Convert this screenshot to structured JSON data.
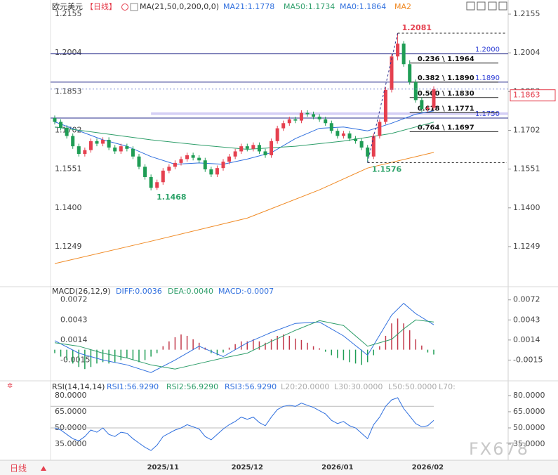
{
  "chart_data": [
    {
      "type": "candlestick",
      "title": "欧元美元",
      "period": "【日线】",
      "indicator": "MA(21,50,0,200,0,0)",
      "legend": [
        {
          "text": "MA21:1.1778",
          "color": "#2f6fde"
        },
        {
          "text": "MA50:1.1734",
          "color": "#2e9e6a"
        },
        {
          "text": "MA0:1.1864",
          "color": "#2f6fde"
        },
        {
          "text": "MA2",
          "color": "#f08a24"
        }
      ],
      "categories": [
        null,
        null,
        null,
        null,
        null,
        null,
        null,
        null,
        null,
        null,
        null,
        null,
        null,
        null,
        null,
        null,
        null,
        null,
        "2025/11",
        null,
        null,
        null,
        null,
        null,
        null,
        null,
        null,
        null,
        null,
        null,
        null,
        null,
        "2025/12",
        null,
        null,
        null,
        null,
        null,
        null,
        null,
        null,
        null,
        null,
        null,
        null,
        null,
        null,
        "2026/01",
        null,
        null,
        null,
        null,
        null,
        null,
        null,
        null,
        null,
        null,
        null,
        null,
        null,
        null,
        "2026/02",
        null
      ],
      "open": [
        1.175,
        1.1735,
        1.1712,
        1.168,
        1.164,
        1.161,
        1.1625,
        1.166,
        1.165,
        1.1665,
        1.1635,
        1.162,
        1.164,
        1.163,
        1.16,
        1.156,
        1.152,
        1.1478,
        1.15,
        1.1545,
        1.156,
        1.1575,
        1.159,
        1.1605,
        1.1595,
        1.1585,
        1.155,
        1.153,
        1.1555,
        1.158,
        1.16,
        1.162,
        1.164,
        1.163,
        1.1645,
        1.162,
        1.1605,
        1.166,
        1.171,
        1.173,
        1.1745,
        1.174,
        1.177,
        1.1765,
        1.1755,
        1.1745,
        1.173,
        1.17,
        1.168,
        1.169,
        1.167,
        1.166,
        1.1635,
        1.16,
        1.168,
        1.1735,
        1.186,
        1.199,
        1.204,
        1.196,
        1.189,
        1.182,
        1.1785,
        1.179
      ],
      "high": [
        1.176,
        1.1745,
        1.1722,
        1.169,
        1.165,
        1.1635,
        1.167,
        1.167,
        1.1675,
        1.1675,
        1.1645,
        1.165,
        1.165,
        1.164,
        1.161,
        1.157,
        1.153,
        1.151,
        1.1555,
        1.157,
        1.1585,
        1.16,
        1.1615,
        1.1615,
        1.1605,
        1.1595,
        1.156,
        1.1565,
        1.159,
        1.161,
        1.163,
        1.165,
        1.165,
        1.1655,
        1.1655,
        1.163,
        1.167,
        1.172,
        1.174,
        1.1755,
        1.1755,
        1.178,
        1.178,
        1.1775,
        1.1765,
        1.1755,
        1.174,
        1.171,
        1.17,
        1.17,
        1.168,
        1.167,
        1.1645,
        1.169,
        1.1745,
        1.187,
        1.2,
        1.2081,
        1.205,
        1.1975,
        1.19,
        1.183,
        1.18,
        1.1873
      ],
      "low": [
        1.1725,
        1.1702,
        1.167,
        1.163,
        1.16,
        1.16,
        1.1615,
        1.164,
        1.164,
        1.1625,
        1.161,
        1.161,
        1.162,
        1.159,
        1.155,
        1.151,
        1.1468,
        1.147,
        1.149,
        1.1535,
        1.155,
        1.1565,
        1.158,
        1.1585,
        1.1575,
        1.154,
        1.152,
        1.152,
        1.1545,
        1.157,
        1.159,
        1.161,
        1.162,
        1.162,
        1.161,
        1.1595,
        1.1595,
        1.165,
        1.17,
        1.172,
        1.173,
        1.173,
        1.1755,
        1.1745,
        1.1735,
        1.172,
        1.169,
        1.167,
        1.167,
        1.166,
        1.165,
        1.1625,
        1.1576,
        1.159,
        1.167,
        1.1725,
        1.185,
        1.1975,
        1.195,
        1.188,
        1.181,
        1.1775,
        1.1775,
        1.178
      ],
      "close": [
        1.1735,
        1.1712,
        1.168,
        1.164,
        1.161,
        1.1625,
        1.166,
        1.165,
        1.1665,
        1.1635,
        1.162,
        1.164,
        1.163,
        1.16,
        1.156,
        1.152,
        1.1478,
        1.15,
        1.1545,
        1.156,
        1.1575,
        1.159,
        1.1605,
        1.1595,
        1.1585,
        1.155,
        1.153,
        1.1555,
        1.158,
        1.16,
        1.162,
        1.164,
        1.163,
        1.1645,
        1.162,
        1.1605,
        1.166,
        1.171,
        1.173,
        1.1745,
        1.174,
        1.177,
        1.1765,
        1.1755,
        1.1745,
        1.173,
        1.17,
        1.168,
        1.169,
        1.167,
        1.166,
        1.1635,
        1.16,
        1.168,
        1.1735,
        1.186,
        1.199,
        1.204,
        1.196,
        1.189,
        1.182,
        1.1785,
        1.179,
        1.1863
      ],
      "up_color": "#e5404f",
      "down_color": "#1f9d55",
      "lines": [
        {
          "color": "#2f6fde",
          "x": [
            0,
            4,
            8,
            12,
            16,
            20,
            24,
            28,
            32,
            36,
            40,
            44,
            48,
            52,
            56,
            60,
            63
          ],
          "values": [
            1.1735,
            1.17,
            1.1665,
            1.164,
            1.16,
            1.157,
            1.1575,
            1.157,
            1.159,
            1.1615,
            1.167,
            1.171,
            1.1715,
            1.17,
            1.173,
            1.1765,
            1.1778
          ]
        },
        {
          "color": "#2e9e6a",
          "x": [
            0,
            8,
            16,
            24,
            32,
            40,
            48,
            56,
            63
          ],
          "values": [
            1.1715,
            1.169,
            1.1665,
            1.1645,
            1.1628,
            1.164,
            1.166,
            1.169,
            1.1734
          ]
        },
        {
          "color": "#f08a24",
          "x": [
            0,
            16,
            32,
            44,
            52,
            63
          ],
          "values": [
            1.1183,
            1.127,
            1.136,
            1.147,
            1.1555,
            1.1616
          ]
        }
      ],
      "levels": [
        {
          "value": 1.2,
          "label": "1.2000"
        },
        {
          "value": 1.189,
          "label": "1.1890"
        },
        {
          "value": 1.175,
          "label": "1.1750"
        }
      ],
      "fib": [
        {
          "value": 1.1964,
          "label": "0.236 \\ 1.1964"
        },
        {
          "value": 1.189,
          "label": "0.382 \\ 1.1890"
        },
        {
          "value": 1.183,
          "label": "0.500 \\ 1.1830"
        },
        {
          "value": 1.1771,
          "label": "0.618 \\ 1.1771"
        },
        {
          "value": 1.1697,
          "label": "0.764 \\ 1.1697"
        }
      ],
      "band": [
        1.1762,
        1.1772
      ],
      "last_price": 1.1863,
      "high_mark": 1.2081,
      "low_mark": 1.1468,
      "swing_low_mark": 1.1576,
      "ylim": [
        1.1101,
        1.2188
      ],
      "yticks": [
        1.2155,
        1.2004,
        1.1853,
        1.1702,
        1.1551,
        {
          "value": 1.14,
          "label": "1.1400"
        },
        1.1249
      ]
    },
    {
      "type": "macd",
      "title": "MACD(26,12,9)",
      "legend": [
        {
          "text": "DIFF:0.0036",
          "color": "#2f6fde"
        },
        {
          "text": "DEA:0.0040",
          "color": "#2e9e6a"
        },
        {
          "text": "MACD:-0.0007",
          "color": "#2f6fde"
        }
      ],
      "histogram": [
        -0.0005,
        -0.001,
        -0.0015,
        -0.002,
        -0.0025,
        -0.0028,
        -0.0025,
        -0.002,
        -0.0018,
        -0.002,
        -0.0018,
        -0.0015,
        -0.0012,
        -0.0015,
        -0.0018,
        -0.0015,
        -0.001,
        -0.0005,
        0.0005,
        0.0012,
        0.0018,
        0.0022,
        0.002,
        0.0015,
        0.001,
        0.0003,
        -0.0005,
        -0.0008,
        -0.0004,
        0.0003,
        0.0008,
        0.0012,
        0.0012,
        0.0015,
        0.0012,
        0.001,
        0.0015,
        0.002,
        0.0022,
        0.002,
        0.0016,
        0.0014,
        0.001,
        0.0005,
        0.0002,
        -0.0003,
        -0.0008,
        -0.0012,
        -0.0015,
        -0.0018,
        -0.002,
        -0.0022,
        -0.0018,
        -0.0008,
        0.0005,
        0.002,
        0.0038,
        0.0045,
        0.0038,
        0.0028,
        0.0015,
        0.0006,
        -0.0004,
        -0.0007
      ],
      "series": [
        {
          "color": "#2f6fde",
          "x": [
            0,
            4,
            8,
            12,
            16,
            20,
            24,
            28,
            32,
            36,
            40,
            44,
            48,
            52,
            56,
            58,
            60,
            63
          ],
          "values": [
            0.0013,
            -0.0005,
            -0.0015,
            -0.0022,
            -0.0033,
            -0.0015,
            0.0005,
            -0.001,
            0.001,
            0.0025,
            0.0038,
            0.004,
            0.002,
            -0.0008,
            0.005,
            0.0067,
            0.0052,
            0.0036
          ]
        },
        {
          "color": "#2e9e6a",
          "x": [
            0,
            4,
            8,
            12,
            16,
            20,
            24,
            28,
            32,
            36,
            40,
            44,
            48,
            52,
            56,
            58,
            60,
            63
          ],
          "values": [
            0.001,
            0.0005,
            -0.0005,
            -0.0012,
            -0.0022,
            -0.0028,
            -0.002,
            -0.0012,
            -0.0005,
            0.0012,
            0.0028,
            0.0042,
            0.0035,
            0.0005,
            0.0015,
            0.003,
            0.0043,
            0.004
          ]
        }
      ],
      "ylim": [
        -0.0043,
        0.0089
      ],
      "yticks": [
        0.0072,
        0.0043,
        0.0014,
        -0.0015
      ]
    },
    {
      "type": "line",
      "title": "RSI(14,14,14)",
      "legend": [
        {
          "text": "RSI1:56.9290",
          "color": "#2f6fde"
        },
        {
          "text": "RSI2:56.9290",
          "color": "#2e9e6a"
        },
        {
          "text": "RSI3:56.9290",
          "color": "#2f6fde"
        },
        {
          "text": "L20:20.0000",
          "color": "#aaaaaa"
        },
        {
          "text": "L30:30.0000",
          "color": "#aaaaaa"
        },
        {
          "text": "L50:50.0000",
          "color": "#aaaaaa"
        },
        {
          "text": "L70:",
          "color": "#aaaaaa"
        }
      ],
      "values": [
        50,
        48,
        44,
        40,
        38,
        42,
        48,
        46,
        50,
        44,
        42,
        46,
        45,
        40,
        36,
        32,
        29,
        34,
        42,
        45,
        48,
        50,
        53,
        51,
        49,
        42,
        39,
        44,
        49,
        53,
        56,
        60,
        58,
        60,
        55,
        52,
        60,
        67,
        70,
        71,
        70,
        73,
        71,
        69,
        66,
        63,
        57,
        54,
        56,
        52,
        50,
        45,
        40,
        53,
        60,
        70,
        76,
        78,
        68,
        61,
        54,
        51,
        52,
        56.929
      ],
      "color": "#2f6fde",
      "levels": [
        70,
        50
      ],
      "ylim": [
        20,
        91.7
      ],
      "yticks": [
        {
          "value": 80,
          "label": "80.0000"
        },
        {
          "value": 65,
          "label": "65.0000"
        },
        {
          "value": 50,
          "label": "50.0000"
        },
        {
          "value": 35,
          "label": "35.0000"
        }
      ]
    },
    {
      "type": "footer",
      "period_button": "日线",
      "watermark": "FX678"
    }
  ]
}
